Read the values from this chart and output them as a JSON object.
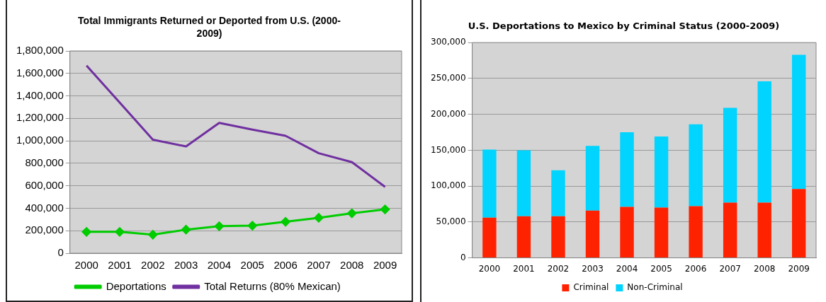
{
  "chart_data": [
    {
      "type": "line",
      "title": "Total Immigrants Returned or Deported from U.S. (2000-2009)",
      "categories": [
        "2000",
        "2001",
        "2002",
        "2003",
        "2004",
        "2005",
        "2006",
        "2007",
        "2008",
        "2009"
      ],
      "series": [
        {
          "name": "Deportations",
          "color": "#00cc00",
          "marker": "diamond",
          "values": [
            190000,
            190000,
            165000,
            210000,
            240000,
            245000,
            280000,
            315000,
            355000,
            390000
          ]
        },
        {
          "name": "Total Returns (80% Mexican)",
          "color": "#7030a0",
          "marker": "none",
          "values": [
            1670000,
            1340000,
            1010000,
            950000,
            1160000,
            1100000,
            1045000,
            890000,
            810000,
            590000
          ]
        }
      ],
      "ylim": [
        0,
        1800000
      ],
      "yticks": [
        0,
        {
          "value": 200000,
          "label": "200,000"
        },
        {
          "value": 400000,
          "label": "400,000"
        },
        {
          "value": 600000,
          "label": "600,000"
        },
        {
          "value": 800000,
          "label": "800,000"
        },
        {
          "value": 1000000,
          "label": "1,000,000"
        },
        {
          "value": 1200000,
          "label": "1,200,000"
        },
        {
          "value": 1400000,
          "label": "1,400,000"
        },
        {
          "value": 1600000,
          "label": "1,600,000"
        },
        {
          "value": 1800000,
          "label": "1,800,000"
        }
      ],
      "grid": "y",
      "legend": "bottom"
    },
    {
      "type": "bar",
      "title": "U.S. Deportations to Mexico by Criminal Status (2000-2009)",
      "categories": [
        "2000",
        "2001",
        "2002",
        "2003",
        "2004",
        "2005",
        "2006",
        "2007",
        "2008",
        "2009"
      ],
      "stacked": true,
      "series": [
        {
          "name": "Criminal",
          "color": "#ff2200",
          "values": [
            56000,
            58000,
            58000,
            66000,
            71000,
            70000,
            72000,
            77000,
            77000,
            96000
          ]
        },
        {
          "name": "Non-Criminal",
          "color": "#00d4ff",
          "values": [
            95000,
            92000,
            64000,
            90000,
            104000,
            99000,
            114000,
            132000,
            169000,
            187000
          ]
        }
      ],
      "ylim": [
        0,
        300000
      ],
      "yticks": [
        0,
        {
          "value": 50000,
          "label": "50,000"
        },
        {
          "value": 100000,
          "label": "100,000"
        },
        {
          "value": 150000,
          "label": "150,000"
        },
        {
          "value": 200000,
          "label": "200,000"
        },
        {
          "value": 250000,
          "label": "250,000"
        },
        {
          "value": 300000,
          "label": "300,000"
        }
      ],
      "grid": "y",
      "legend": "bottom"
    }
  ]
}
